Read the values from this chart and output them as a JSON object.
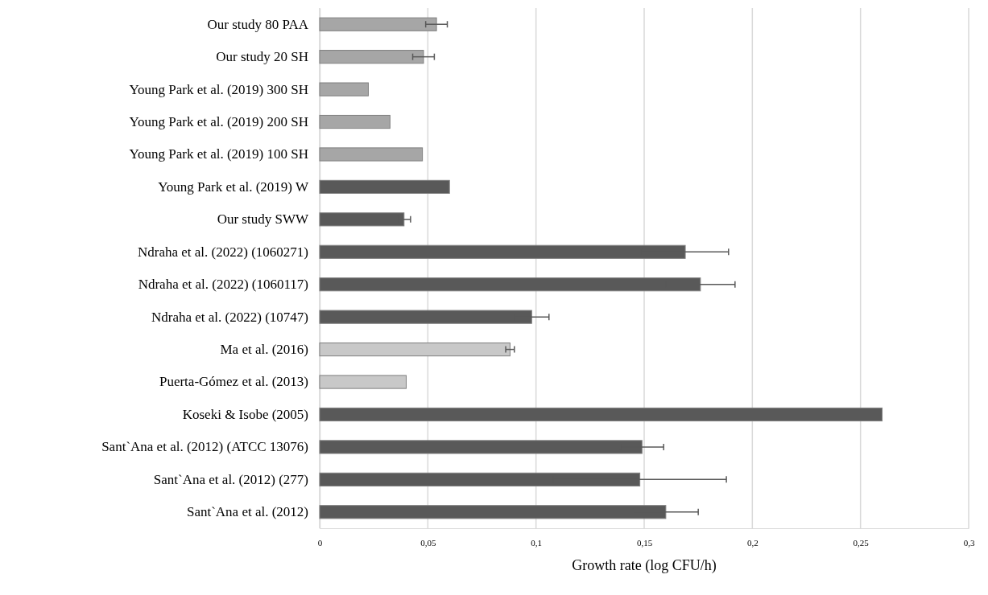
{
  "chart_data": {
    "type": "bar",
    "orientation": "horizontal",
    "xlabel": "Growth rate (log CFU/h)",
    "categories": [
      "Our study 80 PAA",
      "Our study 20 SH",
      "Young Park et al. (2019) 300 SH",
      "Young Park et al. (2019) 200 SH",
      "Young Park et al. (2019) 100 SH",
      "Young Park et al. (2019) W",
      "Our study SWW",
      "Ndraha et al. (2022) (1060271)",
      "Ndraha et al. (2022) (1060117)",
      "Ndraha et al. (2022) (10747)",
      "Ma et al. (2016)",
      "Puerta-Gómez et al. (2013)",
      "Koseki & Isobe (2005)",
      "Sant`Ana et al. (2012) (ATCC 13076)",
      "Sant`Ana et al. (2012) (277)",
      "Sant`Ana et al. (2012)"
    ],
    "values": [
      0.054,
      0.048,
      0.0225,
      0.0325,
      0.0475,
      0.06,
      0.039,
      0.169,
      0.176,
      0.098,
      0.088,
      0.04,
      0.26,
      0.149,
      0.148,
      0.16
    ],
    "errors": [
      0.005,
      0.005,
      null,
      null,
      null,
      null,
      0.003,
      0.02,
      0.016,
      0.008,
      0.002,
      null,
      null,
      0.01,
      0.04,
      0.015
    ],
    "colors": [
      "#a6a6a6",
      "#a6a6a6",
      "#a6a6a6",
      "#a6a6a6",
      "#a6a6a6",
      "#595959",
      "#595959",
      "#595959",
      "#595959",
      "#595959",
      "#c8c8c8",
      "#c8c8c8",
      "#595959",
      "#595959",
      "#595959",
      "#595959"
    ],
    "xlim": [
      0,
      0.3
    ],
    "xticks": [
      0,
      {
        "value": 0.05,
        "label": "0,05"
      },
      {
        "value": 0.1,
        "label": "0,1"
      },
      {
        "value": 0.15,
        "label": "0,15"
      },
      {
        "value": 0.2,
        "label": "0,2"
      },
      {
        "value": 0.25,
        "label": "0,25"
      },
      {
        "value": 0.3,
        "label": "0,3"
      }
    ],
    "grid": "x"
  }
}
